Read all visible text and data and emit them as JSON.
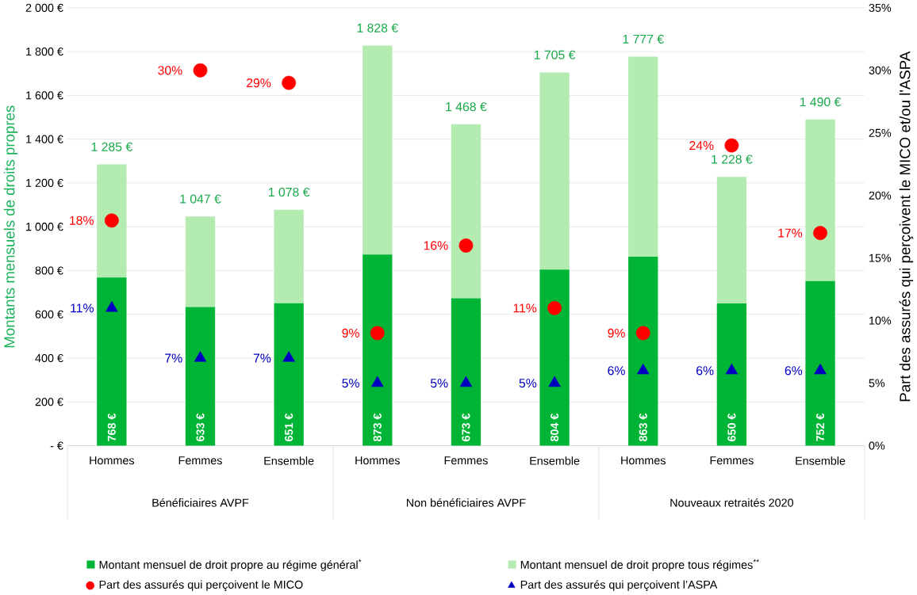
{
  "chart_data": {
    "type": "bar",
    "stacked": true,
    "grid": "y",
    "legend": "bottom",
    "ylabel": "Montants mensuels de droits propres",
    "y2label": "Part des assurés qui perçoivent le MICO et/ou l'ASPA",
    "categories": [
      "Hommes",
      "Femmes",
      "Ensemble",
      "Hommes",
      "Femmes",
      "Ensemble",
      "Hommes",
      "Femmes",
      "Ensemble"
    ],
    "annotations": [
      "Bénéficiaires AVPF",
      "Non bénéficiaires AVPF",
      "Nouveaux retraités 2020"
    ],
    "ylim": [
      0,
      2000
    ],
    "yticks": [
      {
        "value": 0,
        "label": "-  €"
      },
      {
        "value": 200,
        "label": "200 €"
      },
      {
        "value": 400,
        "label": "400 €"
      },
      {
        "value": 600,
        "label": "600 €"
      },
      {
        "value": 800,
        "label": "800 €"
      },
      {
        "value": 1000,
        "label": "1 000 €"
      },
      {
        "value": 1200,
        "label": "1 200 €"
      },
      {
        "value": 1400,
        "label": "1 400 €"
      },
      {
        "value": 1600,
        "label": "1 600 €"
      },
      {
        "value": 1800,
        "label": "1 800 €"
      },
      {
        "value": 2000,
        "label": "2 000 €"
      }
    ],
    "y2lim": [
      0,
      35
    ],
    "y2ticks": [
      {
        "value": 0,
        "label": "0%"
      },
      {
        "value": 5,
        "label": "5%"
      },
      {
        "value": 10,
        "label": "10%"
      },
      {
        "value": 15,
        "label": "15%"
      },
      {
        "value": 20,
        "label": "20%"
      },
      {
        "value": 25,
        "label": "25%"
      },
      {
        "value": 30,
        "label": "30%"
      },
      {
        "value": 35,
        "label": "35%"
      }
    ],
    "totals": [
      "1 285 €",
      "1 047 €",
      "1 078 €",
      "1 828 €",
      "1 468 €",
      "1 705 €",
      "1 777 €",
      "1 228 €",
      "1 490 €"
    ],
    "series": [
      {
        "name": "Montant mensuel de droit propre au régime général$^{*}$",
        "color": "#00b536",
        "values": [
          768,
          633,
          651,
          873,
          673,
          804,
          863,
          650,
          752
        ],
        "value_labels": [
          "768 €",
          "633 €",
          "651 €",
          "873 €",
          "673 €",
          "804 €",
          "863 €",
          "650 €",
          "752 €"
        ]
      },
      {
        "name": "Montant mensuel de droit propre tous régimes$^{**}$",
        "color": "#b3ebb0",
        "values": [
          517,
          414,
          427,
          955,
          795,
          901,
          914,
          578,
          738
        ]
      },
      {
        "name": "Part des assurés qui perçoivent le MICO",
        "type": "scatter",
        "axis": "y2",
        "marker": "circle",
        "color": "#ff0000",
        "values": [
          18,
          30,
          29,
          9,
          16,
          11,
          9,
          24,
          17
        ],
        "value_labels": [
          "18%",
          "30%",
          "29%",
          "9%",
          "16%",
          "11%",
          "9%",
          "24%",
          "17%"
        ]
      },
      {
        "name": "Part des assurés qui perçoivent l’ASPA",
        "type": "scatter",
        "axis": "y2",
        "marker": "triangle",
        "color": "#0000c0",
        "values": [
          11,
          7,
          7,
          5,
          5,
          5,
          6,
          6,
          6
        ],
        "value_labels": [
          "11%",
          "7%",
          "7%",
          "5%",
          "5%",
          "5%",
          "6%",
          "6%",
          "6%"
        ]
      }
    ]
  }
}
